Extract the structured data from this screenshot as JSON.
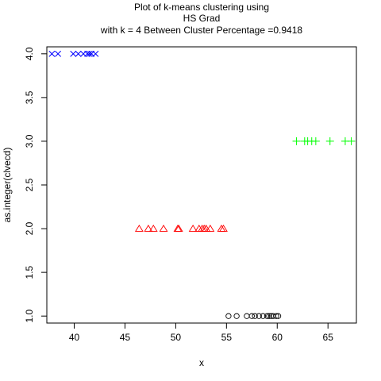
{
  "chart_data": {
    "type": "scatter",
    "title_lines": [
      "Plot of k-means clustering using",
      "HS Grad",
      "with  k = 4 Between Cluster Percentage =0.9418"
    ],
    "xlabel": "x",
    "ylabel": "as.integer(clvecd)",
    "xlim": [
      37.3,
      67.8
    ],
    "ylim": [
      0.92,
      4.08
    ],
    "x_ticks": [
      40,
      45,
      50,
      55,
      60,
      65
    ],
    "x_tick_labels": [
      "40",
      "45",
      "50",
      "55",
      "60",
      "65"
    ],
    "y_ticks": [
      1.0,
      1.5,
      2.0,
      2.5,
      3.0,
      3.5,
      4.0
    ],
    "y_tick_labels": [
      "1.0",
      "1.5",
      "2.0",
      "2.5",
      "3.0",
      "3.5",
      "4.0"
    ],
    "grid": false,
    "legend": "none",
    "series": [
      {
        "cluster": 1,
        "marker": "circle",
        "color": "#000000",
        "x": [
          55.2,
          56.0,
          57.0,
          57.5,
          57.8,
          58.2,
          58.6,
          59.0,
          59.2,
          59.4,
          59.6,
          59.9,
          60.1
        ],
        "y": [
          1,
          1,
          1,
          1,
          1,
          1,
          1,
          1,
          1,
          1,
          1,
          1,
          1
        ]
      },
      {
        "cluster": 2,
        "marker": "triangle",
        "color": "#ff0000",
        "x": [
          46.4,
          47.3,
          47.8,
          48.8,
          50.2,
          50.3,
          51.7,
          52.3,
          52.6,
          52.8,
          53.0,
          53.4,
          54.5,
          54.7
        ],
        "y": [
          2,
          2,
          2,
          2,
          2,
          2,
          2,
          2,
          2,
          2,
          2,
          2,
          2,
          2
        ]
      },
      {
        "cluster": 3,
        "marker": "plus",
        "color": "#00ff00",
        "x": [
          61.9,
          62.7,
          63.0,
          63.4,
          63.8,
          65.2,
          66.7,
          67.3
        ],
        "y": [
          3,
          3,
          3,
          3,
          3,
          3,
          3,
          3
        ]
      },
      {
        "cluster": 4,
        "marker": "cross",
        "color": "#0000ff",
        "x": [
          37.8,
          38.4,
          39.9,
          40.4,
          40.9,
          41.3,
          41.5,
          41.7,
          42.1
        ],
        "y": [
          4,
          4,
          4,
          4,
          4,
          4,
          4,
          4,
          4
        ]
      }
    ]
  }
}
